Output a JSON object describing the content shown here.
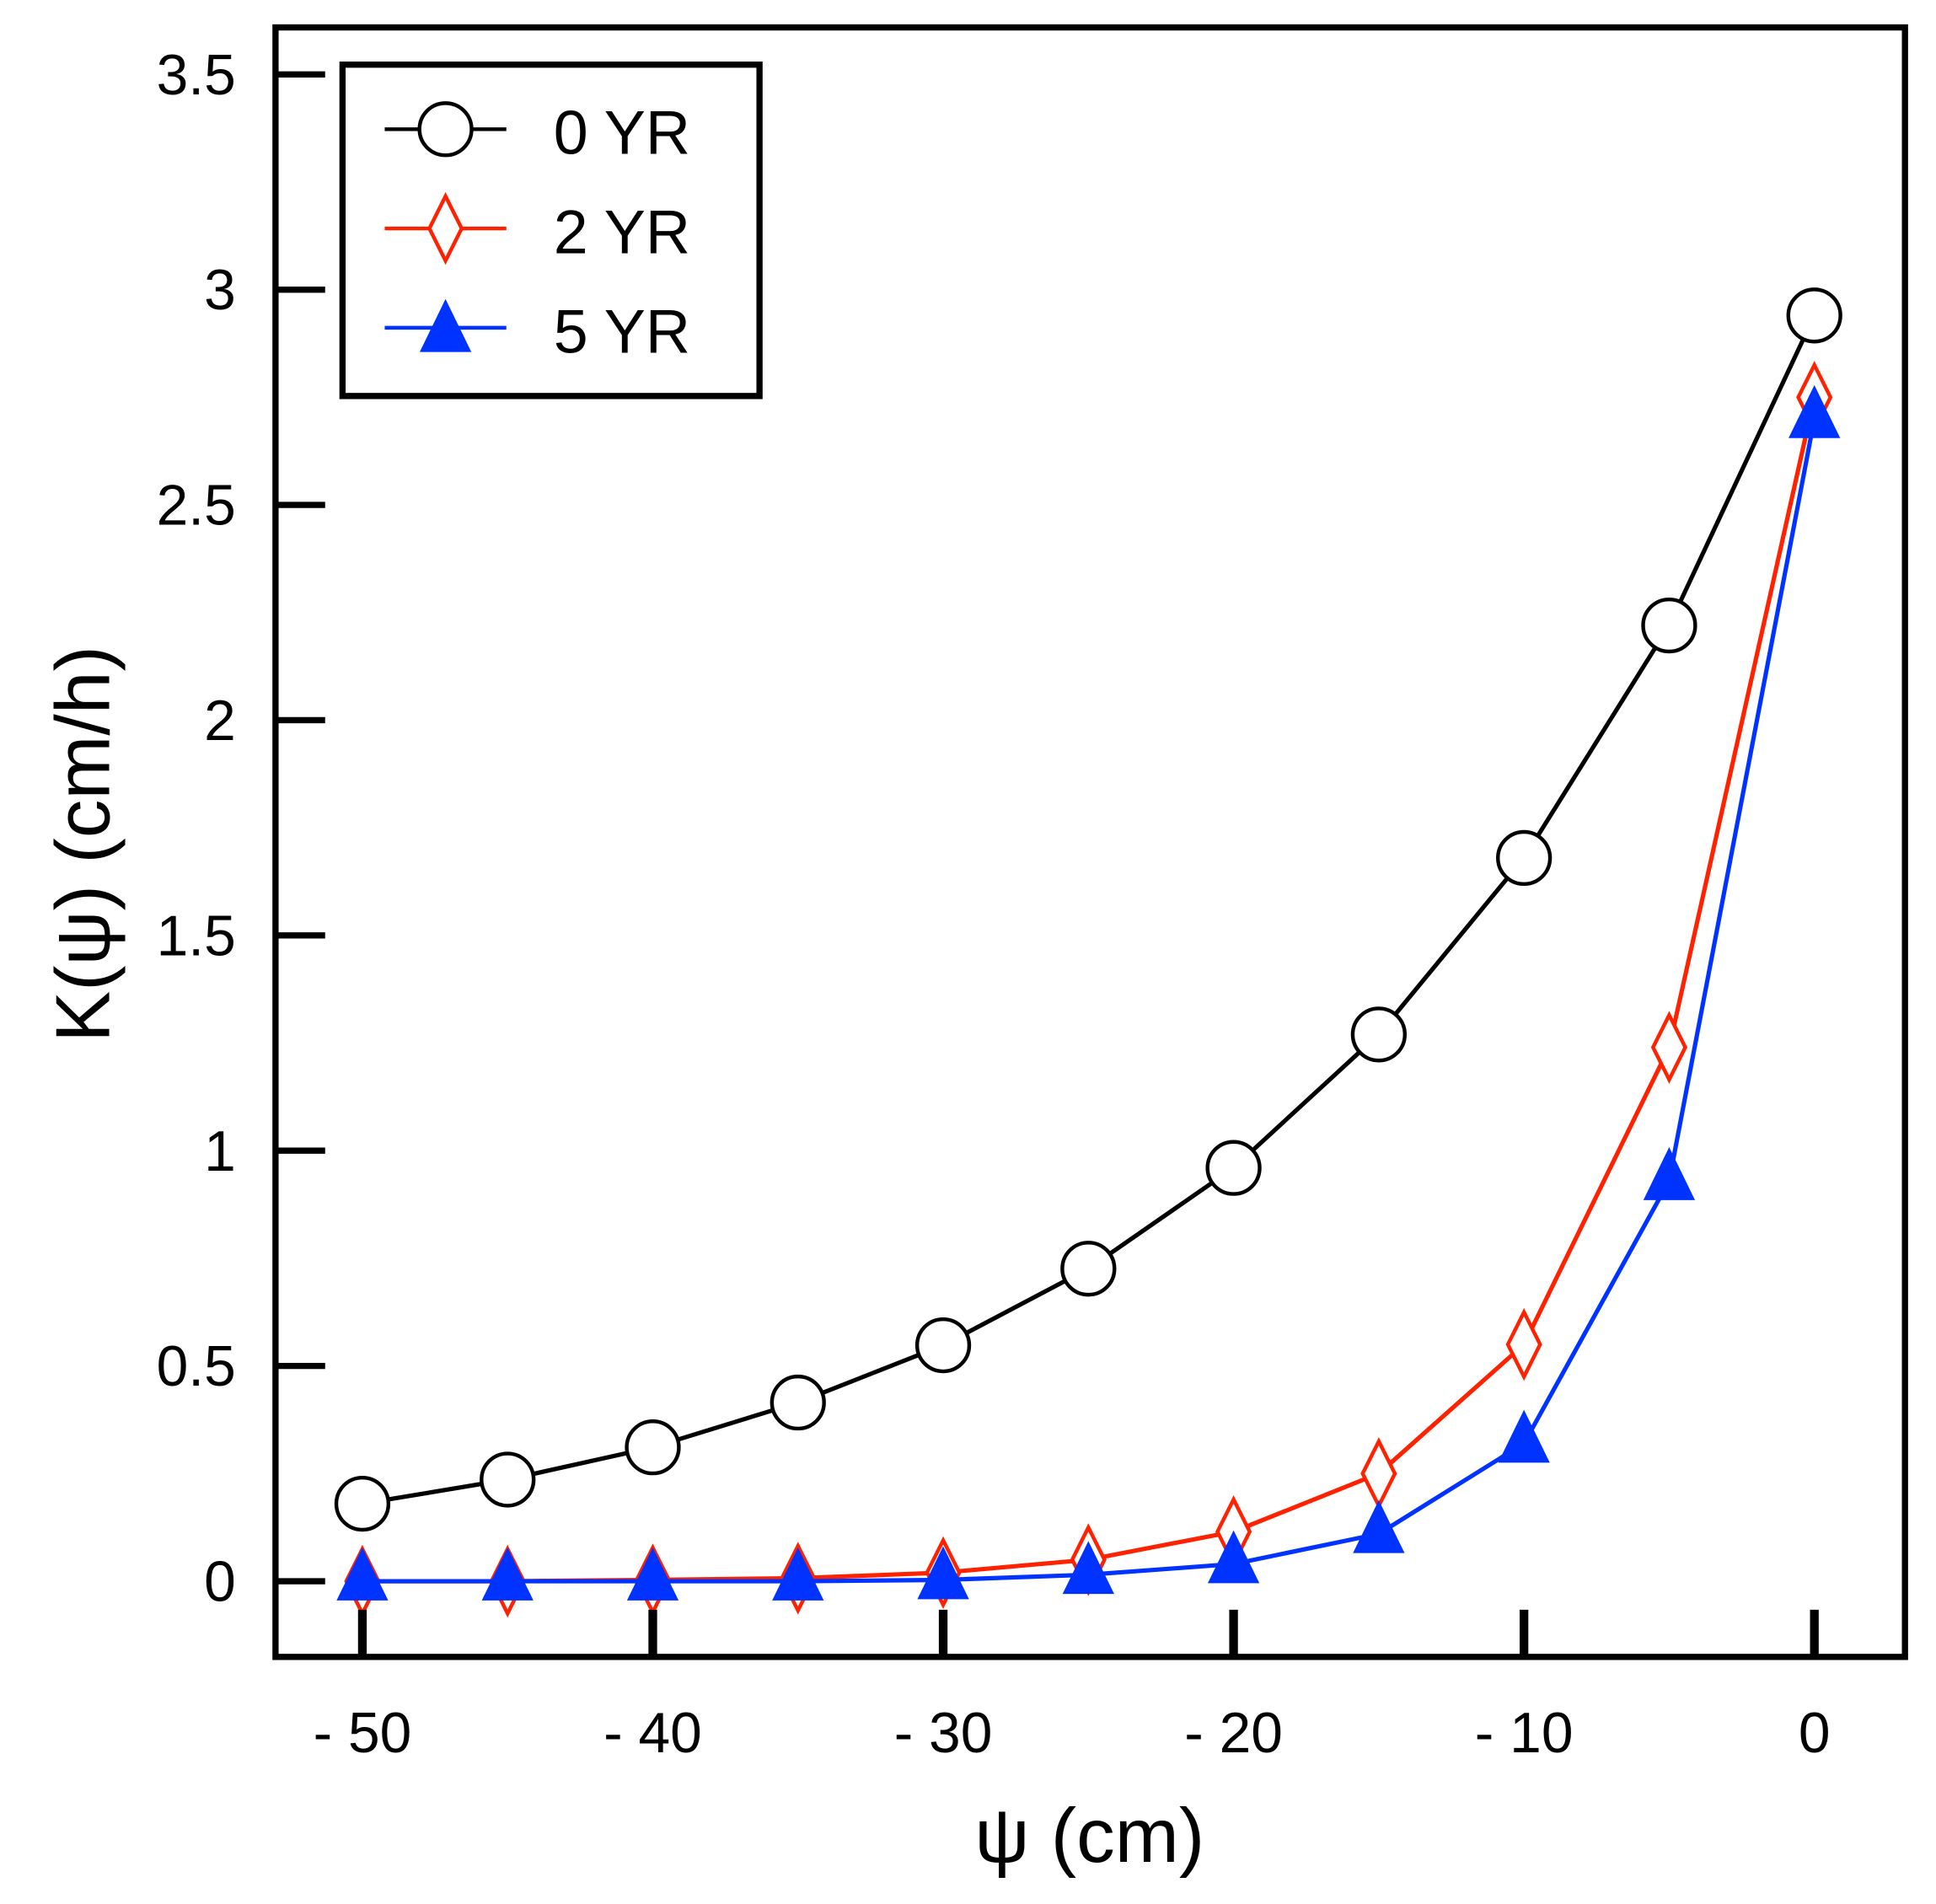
{
  "chart_data": {
    "type": "line",
    "title": "",
    "xlabel": "ψ (cm)",
    "ylabel": "K(ψ) (cm/h)",
    "xlim": [
      -53,
      3
    ],
    "ylim": [
      -0.18,
      3.6
    ],
    "x_ticks": [
      -50,
      -40,
      -30,
      -20,
      -10,
      0
    ],
    "x_tick_labels": [
      "- 50",
      "- 40",
      "- 30",
      "- 20",
      "- 10",
      "0"
    ],
    "y_ticks": [
      0,
      0.5,
      1,
      1.5,
      2,
      2.5,
      3,
      3.5
    ],
    "y_tick_labels": [
      "0",
      "0.5",
      "1",
      "1.5",
      "2",
      "2.5",
      "3",
      "3.5"
    ],
    "grid": false,
    "legend_position": "top-left",
    "x": [
      -50,
      -45,
      -40,
      -35,
      -30,
      -25,
      -20,
      -15,
      -10,
      -5,
      0
    ],
    "series": [
      {
        "name": "0 YR",
        "color": "#000000",
        "marker": "open-circle",
        "values": [
          0.18,
          0.236,
          0.311,
          0.415,
          0.548,
          0.726,
          0.96,
          1.27,
          1.68,
          2.22,
          2.94
        ]
      },
      {
        "name": "2 YR",
        "color": "#ff2200",
        "marker": "open-diamond",
        "values": [
          0.0,
          0.0,
          0.003,
          0.007,
          0.02,
          0.05,
          0.115,
          0.25,
          0.55,
          1.24,
          2.75
        ]
      },
      {
        "name": "5 YR",
        "color": "#0033ff",
        "marker": "filled-triangle",
        "values": [
          0.0,
          0.0,
          0.0,
          0.0,
          0.003,
          0.015,
          0.04,
          0.11,
          0.32,
          0.93,
          2.7
        ]
      }
    ]
  }
}
